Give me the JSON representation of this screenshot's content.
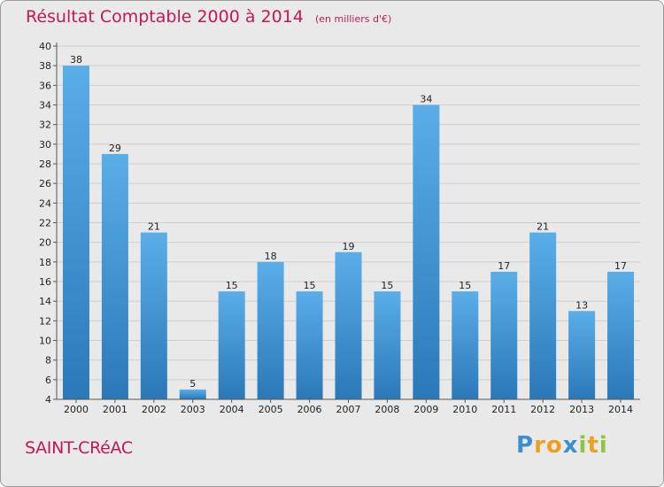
{
  "chart_data": {
    "type": "bar",
    "title": "Résultat Comptable 2000 à 2014",
    "unit": "(en milliers d'€)",
    "xlabel": "",
    "ylabel": "",
    "ylim": [
      4,
      40
    ],
    "yticks": [
      4,
      6,
      8,
      10,
      12,
      14,
      16,
      18,
      20,
      22,
      24,
      26,
      28,
      30,
      32,
      34,
      36,
      38,
      40
    ],
    "categories": [
      "2000",
      "2001",
      "2002",
      "2003",
      "2004",
      "2005",
      "2006",
      "2007",
      "2008",
      "2009",
      "2010",
      "2011",
      "2012",
      "2013",
      "2014"
    ],
    "values": [
      38,
      29,
      21,
      5,
      15,
      18,
      15,
      19,
      15,
      34,
      15,
      17,
      21,
      13,
      17
    ],
    "grid": true
  },
  "commune": "SAINT-CRéAC",
  "logo": {
    "letters": [
      "P",
      "r",
      "o",
      "x",
      "i",
      "t",
      "i"
    ],
    "colors": [
      "#3a8fd1",
      "#f0a020",
      "#f0a020",
      "#3a8fd1",
      "#8cc63f",
      "#f0a020",
      "#8cc63f"
    ]
  },
  "colors": {
    "bar_top": "#5aaee8",
    "bar_bottom": "#2b78b9",
    "title": "#c2185b",
    "grid": "#cfcfcf"
  }
}
